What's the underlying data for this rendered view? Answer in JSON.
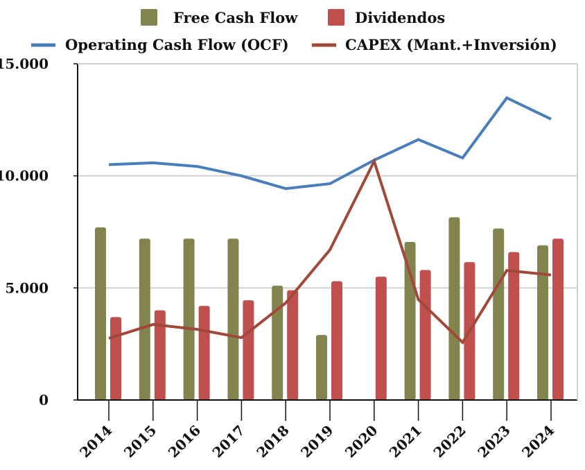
{
  "chart_data": {
    "type": "bar",
    "title": "",
    "xlabel": "",
    "ylabel": "",
    "ylim": [
      0,
      15000
    ],
    "yticks": [
      "0",
      "5.000",
      "10.000",
      "15.000"
    ],
    "ytick_values": [
      0,
      5000,
      10000,
      15000
    ],
    "grid": true,
    "legend_placement": "top",
    "categories": [
      "2014",
      "2015",
      "2016",
      "2017",
      "2018",
      "2019",
      "2020",
      "2021",
      "2022",
      "2023",
      "2024"
    ],
    "series": [
      {
        "name": "Free Cash Flow",
        "kind": "bar",
        "color": "#82844f",
        "values": [
          7700,
          7200,
          7200,
          7200,
          5100,
          2900,
          0,
          7050,
          8150,
          7650,
          6900
        ]
      },
      {
        "name": "Dividendos",
        "kind": "bar",
        "color": "#c0504d",
        "values": [
          3700,
          4000,
          4200,
          4450,
          4900,
          5300,
          5500,
          5800,
          6150,
          6600,
          7200
        ]
      },
      {
        "name": "Operating Cash Flow (OCF)",
        "kind": "line",
        "color": "#4a7ebb",
        "values": [
          10500,
          10580,
          10420,
          10000,
          9430,
          9650,
          10700,
          11620,
          10800,
          13480,
          12530
        ]
      },
      {
        "name": "CAPEX (Mant.+Inversión)",
        "kind": "line",
        "color": "#a0493a",
        "values": [
          2750,
          3370,
          3150,
          2780,
          4330,
          6700,
          10650,
          4480,
          2570,
          5780,
          5580
        ]
      }
    ]
  }
}
